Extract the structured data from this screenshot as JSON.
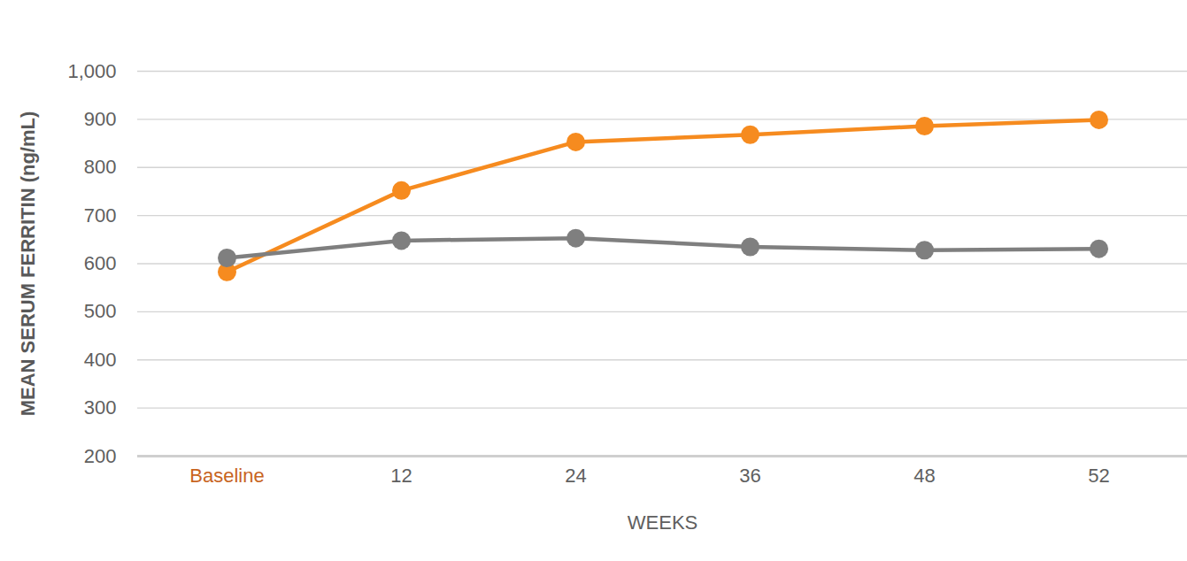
{
  "chart_data": {
    "type": "line",
    "x_label": "WEEKS",
    "y_label": "MEAN SERUM FERRITIN (ng/mL)",
    "categories": [
      "Baseline",
      "12",
      "24",
      "36",
      "48",
      "52"
    ],
    "series": [
      {
        "color": "#f68b1f",
        "values": [
          583,
          752,
          853,
          868,
          886,
          899
        ],
        "marker": "circle"
      },
      {
        "color": "#7f7f7f",
        "values": [
          612,
          648,
          653,
          635,
          628,
          631
        ],
        "marker": "circle"
      }
    ],
    "ylim": [
      200,
      1000
    ],
    "yticks": [
      200,
      300,
      400,
      500,
      600,
      700,
      800,
      900,
      1000
    ],
    "grid": true
  }
}
